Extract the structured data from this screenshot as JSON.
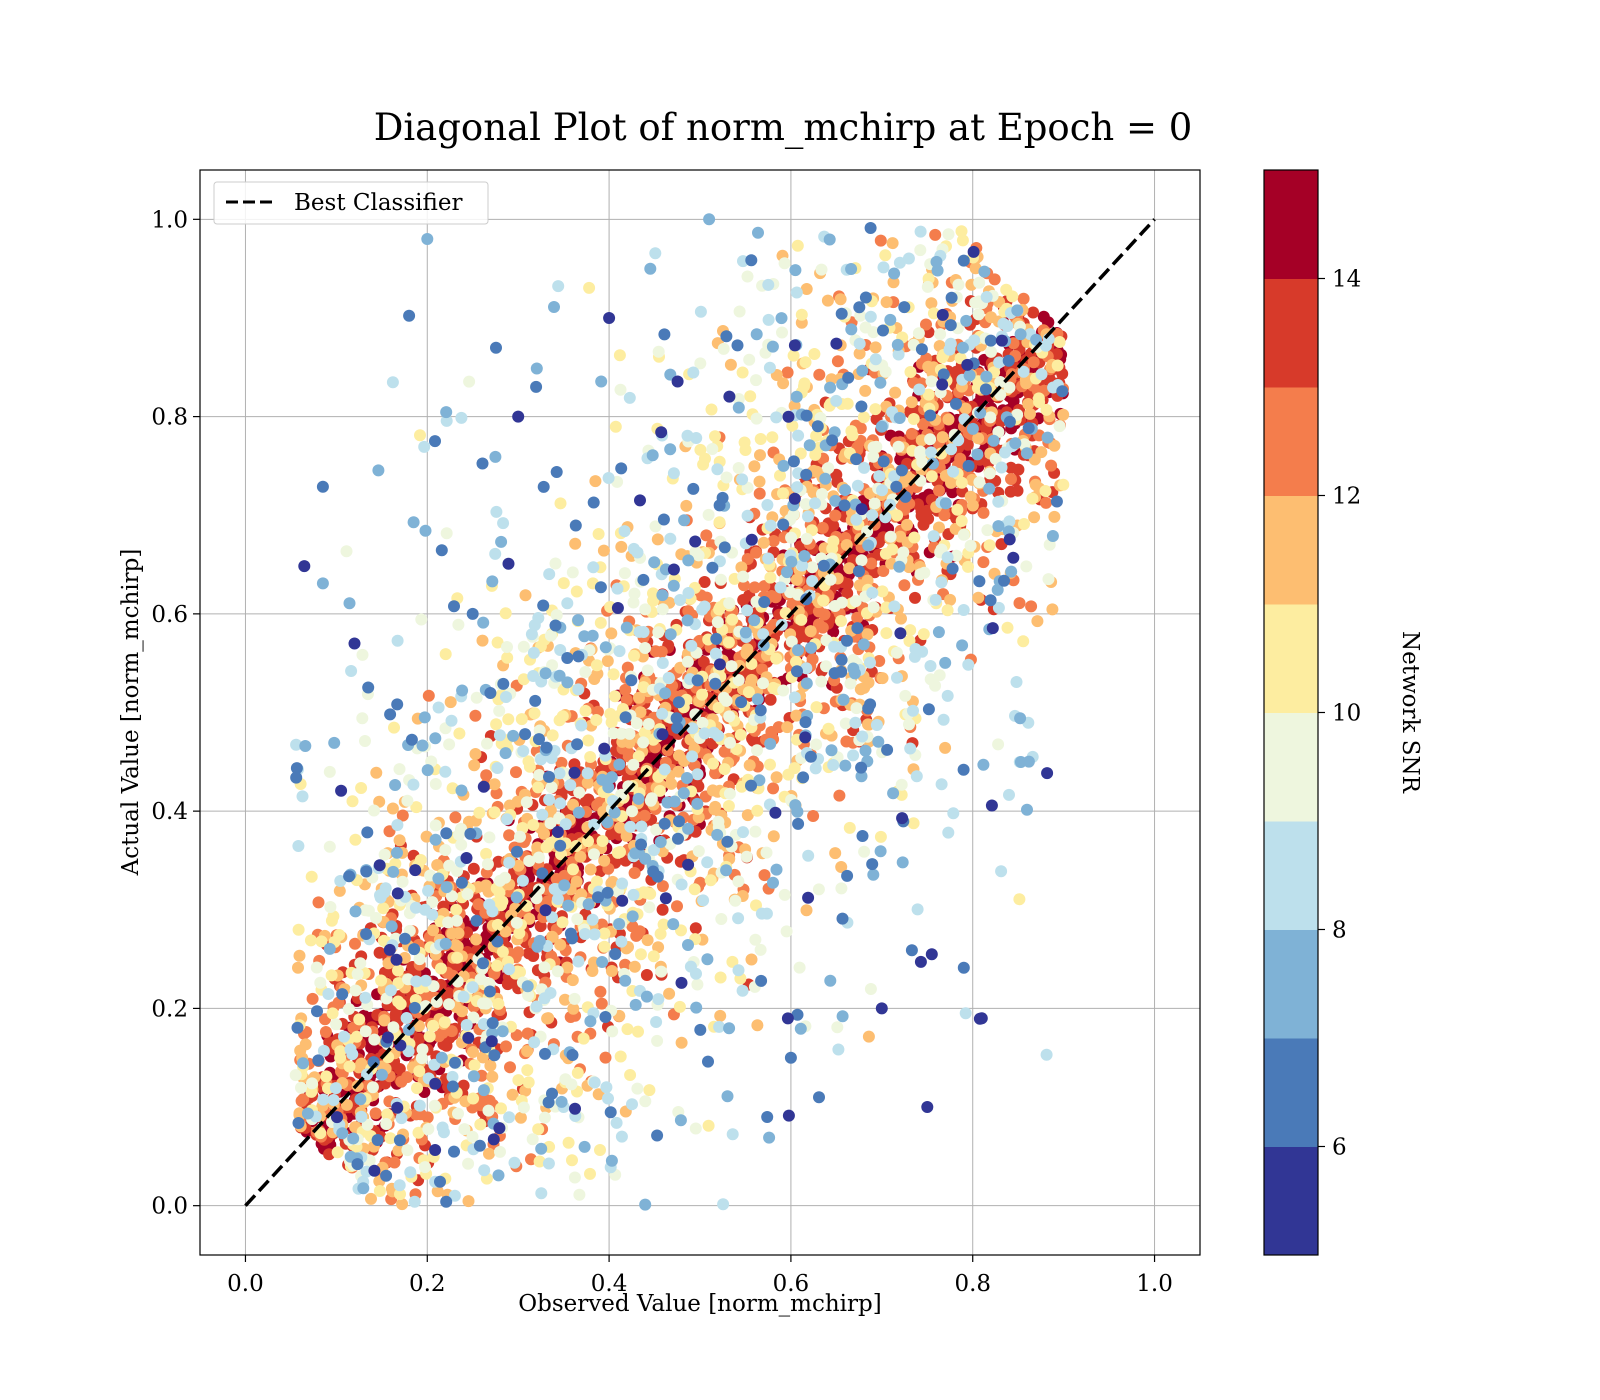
{
  "chart_data": {
    "type": "scatter",
    "title": "Diagonal Plot of norm_mchirp at Epoch = 0",
    "xlabel": "Observed Value [norm_mchirp]",
    "ylabel": "Actual Value [norm_mchirp]",
    "xlim": [
      -0.05,
      1.05
    ],
    "ylim": [
      -0.05,
      1.05
    ],
    "xticks": [
      0.0,
      0.2,
      0.4,
      0.6,
      0.8,
      1.0
    ],
    "yticks": [
      0.0,
      0.2,
      0.4,
      0.6,
      0.8,
      1.0
    ],
    "xtick_labels": [
      "0.0",
      "0.2",
      "0.4",
      "0.6",
      "0.8",
      "1.0"
    ],
    "ytick_labels": [
      "0.0",
      "0.2",
      "0.4",
      "0.6",
      "0.8",
      "1.0"
    ],
    "grid": true,
    "legend": {
      "position": "top-left",
      "entries": [
        "Best Classifier"
      ]
    },
    "reference_line": {
      "name": "Best Classifier",
      "x": [
        0.0,
        1.0
      ],
      "y": [
        0.0,
        1.0
      ],
      "color": "#000000",
      "style": "dashed"
    },
    "colorbar": {
      "label": "Network SNR",
      "min": 5.0,
      "max": 15.0,
      "ticks": [
        6,
        8,
        10,
        12,
        14
      ],
      "tick_labels": [
        "6",
        "8",
        "10",
        "12",
        "14"
      ],
      "bins": [
        {
          "from": 5,
          "to": 6,
          "color": "#313695"
        },
        {
          "from": 6,
          "to": 7,
          "color": "#4a7ab8"
        },
        {
          "from": 7,
          "to": 8,
          "color": "#7fb2d6"
        },
        {
          "from": 8,
          "to": 9,
          "color": "#bde0ec"
        },
        {
          "from": 9,
          "to": 10,
          "color": "#eef6de"
        },
        {
          "from": 10,
          "to": 11,
          "color": "#fdeda0"
        },
        {
          "from": 11,
          "to": 12,
          "color": "#fdbe71"
        },
        {
          "from": 12,
          "to": 13,
          "color": "#f47d4c"
        },
        {
          "from": 13,
          "to": 14,
          "color": "#d73a2a"
        },
        {
          "from": 14,
          "to": 15,
          "color": "#a50026"
        }
      ]
    },
    "point_cloud": {
      "description": "dense cloud of points scattered around the diagonal; high-SNR points (dark red) tightly along y=x, low-SNR points (blue) spread far off-diagonal",
      "x_range": [
        0.05,
        0.9
      ],
      "y_range": [
        0.0,
        1.0
      ],
      "sample_points": [
        {
          "x": 0.1,
          "y": 0.1,
          "snr": 14.5
        },
        {
          "x": 0.2,
          "y": 0.2,
          "snr": 14.5
        },
        {
          "x": 0.3,
          "y": 0.3,
          "snr": 14.5
        },
        {
          "x": 0.4,
          "y": 0.4,
          "snr": 14.5
        },
        {
          "x": 0.5,
          "y": 0.5,
          "snr": 14.5
        },
        {
          "x": 0.6,
          "y": 0.6,
          "snr": 14.5
        },
        {
          "x": 0.7,
          "y": 0.7,
          "snr": 14.5
        },
        {
          "x": 0.8,
          "y": 0.8,
          "snr": 14.5
        },
        {
          "x": 0.85,
          "y": 0.9,
          "snr": 14.5
        },
        {
          "x": 0.3,
          "y": 0.8,
          "snr": 5.5
        },
        {
          "x": 0.4,
          "y": 0.9,
          "snr": 5.5
        },
        {
          "x": 0.25,
          "y": 0.6,
          "snr": 6.5
        },
        {
          "x": 0.6,
          "y": 0.15,
          "snr": 6.0
        },
        {
          "x": 0.7,
          "y": 0.2,
          "snr": 5.5
        },
        {
          "x": 0.35,
          "y": 0.1,
          "snr": 8.5
        },
        {
          "x": 0.12,
          "y": 0.57,
          "snr": 5.5
        },
        {
          "x": 0.81,
          "y": 0.19,
          "snr": 5.5
        },
        {
          "x": 0.75,
          "y": 0.1,
          "snr": 5.5
        },
        {
          "x": 0.2,
          "y": 0.98,
          "snr": 7.5
        },
        {
          "x": 0.51,
          "y": 1.0,
          "snr": 7.0
        }
      ]
    }
  }
}
